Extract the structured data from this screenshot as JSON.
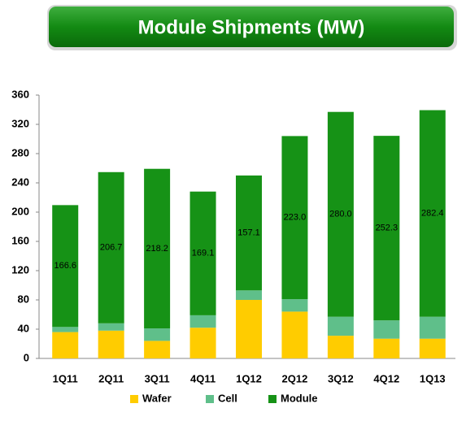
{
  "chart_data": {
    "type": "bar",
    "stacked": true,
    "title": "Module Shipments (MW)",
    "categories": [
      "1Q11",
      "2Q11",
      "3Q11",
      "4Q11",
      "1Q12",
      "2Q12",
      "3Q12",
      "4Q12",
      "1Q13"
    ],
    "series": [
      {
        "name": "Wafer",
        "color": "#ffcc00",
        "values": [
          36,
          38,
          24,
          42,
          80,
          64,
          31,
          27,
          27
        ]
      },
      {
        "name": "Cell",
        "color": "#5fbf8a",
        "values": [
          7,
          10,
          17,
          17,
          13,
          17,
          26,
          25,
          30
        ]
      },
      {
        "name": "Module",
        "color": "#169216",
        "values": [
          166.6,
          206.7,
          218.2,
          169.1,
          157.1,
          223.0,
          280.0,
          252.3,
          282.4
        ],
        "value_labels": [
          "166.6",
          "206.7",
          "218.2",
          "169.1",
          "157.1",
          "223.0",
          "280.0",
          "252.3",
          "282.4"
        ]
      }
    ],
    "ylim": [
      0,
      360
    ],
    "yticks": [
      0,
      40,
      80,
      120,
      160,
      200,
      240,
      280,
      320,
      360
    ],
    "grid": false,
    "legend": "bottom"
  }
}
